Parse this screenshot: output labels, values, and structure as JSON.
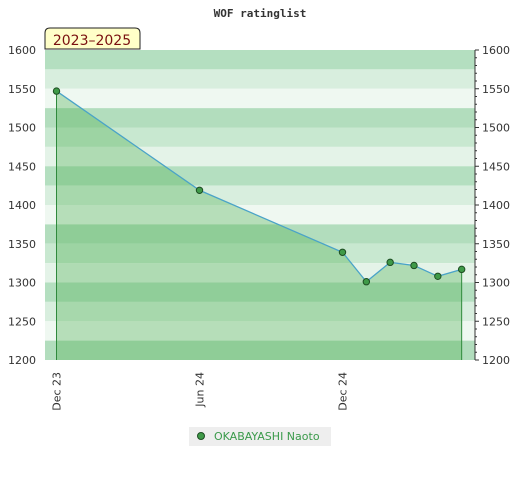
{
  "chart_data": {
    "type": "area",
    "title": "WOF ratinglist",
    "badge": "2023–2025",
    "x_ticks": [
      "Dec 23",
      "Jun 24",
      "Dec 24"
    ],
    "ylim": [
      1200,
      1600
    ],
    "y_ticks": [
      1200,
      1250,
      1300,
      1350,
      1400,
      1450,
      1500,
      1550,
      1600
    ],
    "series": [
      {
        "name": "OKABAYASHI Naoto",
        "x": [
          "2023-12",
          "2024-06",
          "2024-12",
          "2025-01",
          "2025-02",
          "2025-03",
          "2025-04",
          "2025-05"
        ],
        "values": [
          1547,
          1419,
          1339,
          1301,
          1326,
          1322,
          1308,
          1317
        ]
      }
    ],
    "colors": {
      "line": "#4aa3c8",
      "fill": "#4caf50",
      "marker": "#3f9a48",
      "badge_bg": "#ffffc8"
    },
    "legend": "bottom-center",
    "grid": true
  }
}
